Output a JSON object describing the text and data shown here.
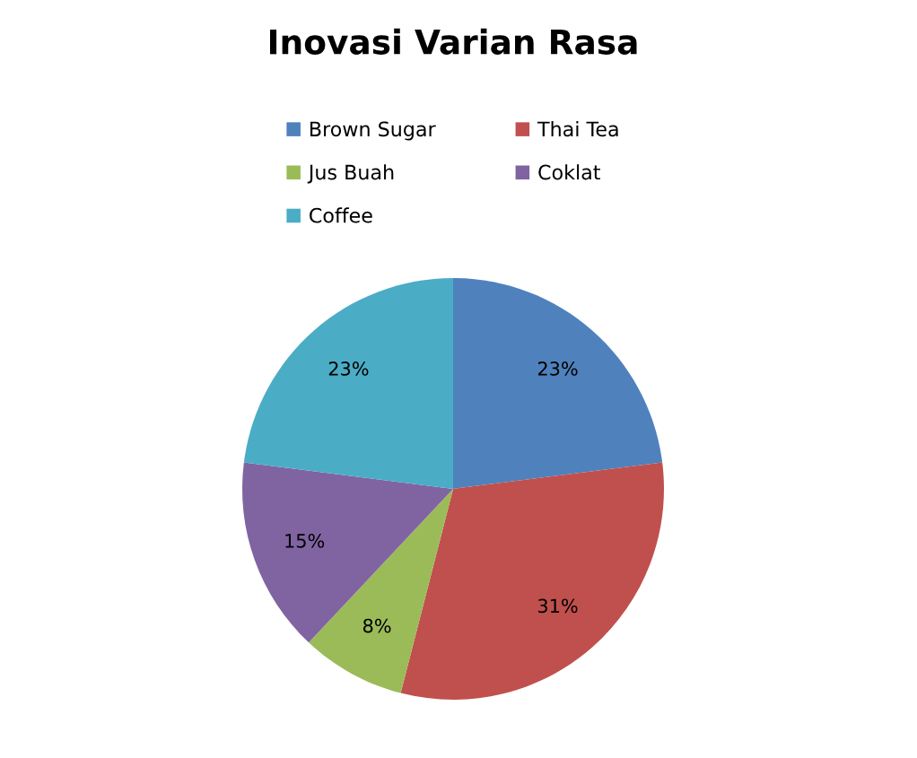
{
  "chart_data": {
    "type": "pie",
    "title": "Inovasi Varian Rasa",
    "categories": [
      "Brown Sugar",
      "Thai Tea",
      "Jus Buah",
      "Coklat",
      "Coffee"
    ],
    "values": [
      23,
      31,
      8,
      15,
      23
    ],
    "value_labels": [
      "23%",
      "31%",
      "8%",
      "15%",
      "23%"
    ],
    "colors": [
      "#4f81bd",
      "#c0504d",
      "#9bbb59",
      "#8064a2",
      "#4bacc6"
    ],
    "legend": "top"
  }
}
